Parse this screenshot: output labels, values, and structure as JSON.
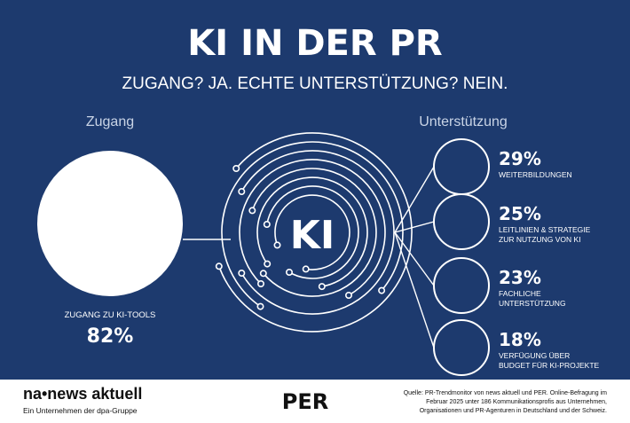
{
  "infographic": {
    "title": "KI IN DER PR",
    "subtitle": "ZUGANG? JA. ECHTE UNTERSTÜTZUNG? NEIN.",
    "left_header": "Zugang",
    "right_header": "Unterstützung",
    "center_label": "KI"
  },
  "colors": {
    "background": "#1d3a6e",
    "circle": "#ffffff",
    "text": "#ffffff",
    "header_text": "#c9d4e6",
    "footer_bg": "#ffffff",
    "footer_text": "#111111"
  },
  "chart_data": {
    "type": "bubble",
    "access": {
      "label": "ZUGANG ZU KI-TOOLS",
      "value_label": "82%",
      "value": 82
    },
    "support": [
      {
        "value": 29,
        "value_label": "29%",
        "label_lines": [
          "WEITERBILDUNGEN"
        ]
      },
      {
        "value": 25,
        "value_label": "25%",
        "label_lines": [
          "LEITLINIEN & STRATEGIE",
          "ZUR NUTZUNG VON KI"
        ]
      },
      {
        "value": 23,
        "value_label": "23%",
        "label_lines": [
          "FACHLICHE",
          "UNTERSTÜTZUNG"
        ]
      },
      {
        "value": 18,
        "value_label": "18%",
        "label_lines": [
          "VERFÜGUNG ÜBER",
          "BUDGET FÜR KI-PROJEKTE"
        ]
      }
    ]
  },
  "footer": {
    "logo_left_main": "na•news aktuell",
    "logo_left_sub": "Ein Unternehmen der dpa-Gruppe",
    "logo_center": "PER",
    "source_lines": [
      "Quelle: PR-Trendmonitor von news aktuell und PER. Online-Befragung im",
      "Februar 2025 unter 186 Kommunikationsprofis aus Unternehmen,",
      "Organisationen und PR-Agenturen in Deutschland und der Schweiz."
    ]
  }
}
